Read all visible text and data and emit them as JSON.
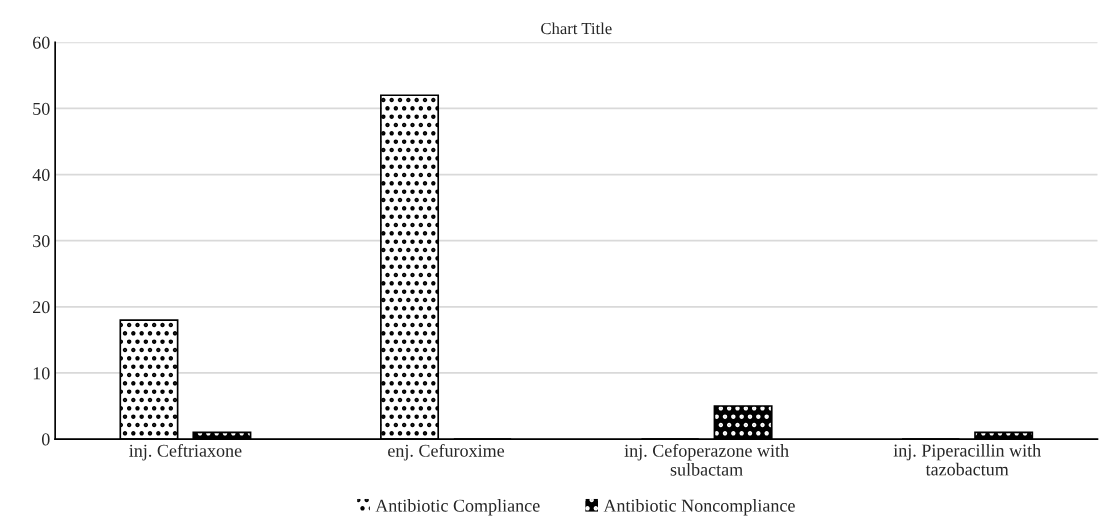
{
  "chart_data": {
    "type": "bar",
    "title": "Chart Title",
    "categories": [
      "inj. Ceftriaxone",
      "enj. Cefuroxime",
      "inj. Cefoperazone with\nsulbactam",
      "inj. Piperacillin with\ntazobactum"
    ],
    "series": [
      {
        "name": "Antibiotic Compliance",
        "color": "#ffffff",
        "values": [
          18,
          52,
          0,
          0
        ]
      },
      {
        "name": "Antibiotic Noncompliance",
        "color": "#000000",
        "values": [
          1,
          0,
          5,
          1
        ]
      }
    ],
    "ylim": [
      0,
      60
    ],
    "yticks": [
      0,
      10,
      20,
      30,
      40,
      50,
      60
    ],
    "grid": "y",
    "legend": "bottom"
  }
}
